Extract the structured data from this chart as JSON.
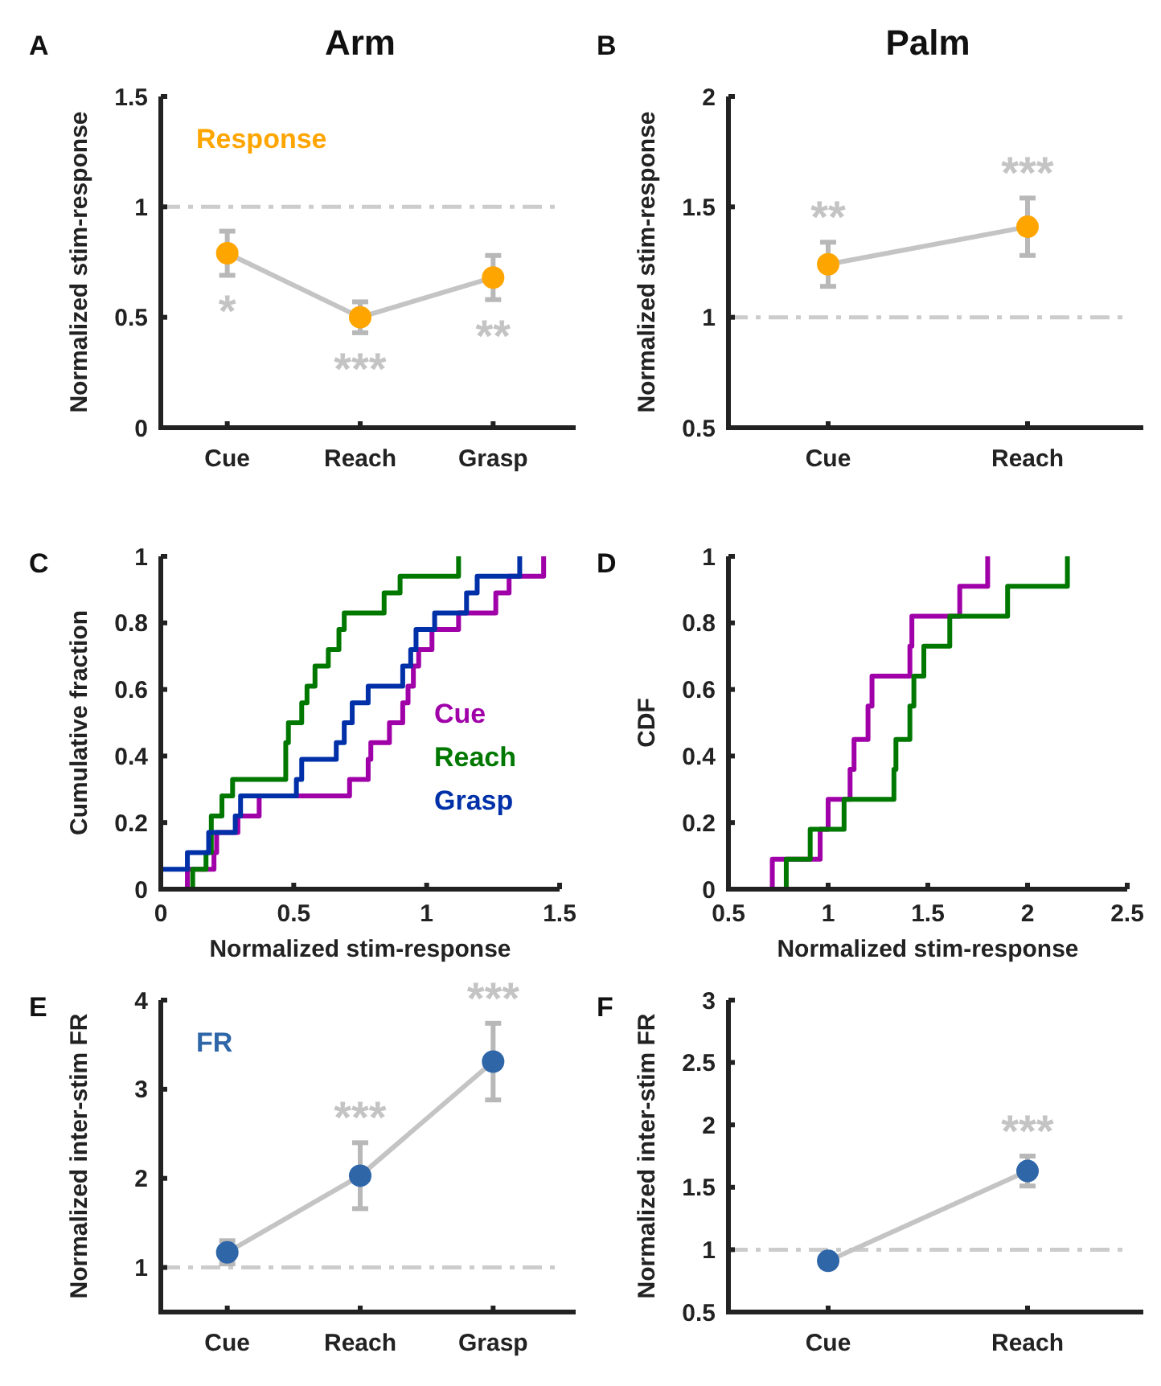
{
  "chart_data": [
    {
      "type": "line",
      "title": "Arm",
      "ylabel": "Normalized stim-response",
      "categories": [
        "Cue",
        "Reach",
        "Grasp"
      ],
      "series": [
        {
          "name": "Response",
          "color": "#ffa500",
          "values": [
            0.79,
            0.5,
            0.68
          ],
          "errors": [
            0.1,
            0.07,
            0.1
          ],
          "value_labels": [
            "*",
            "***",
            "**"
          ]
        }
      ],
      "ylim": [
        0,
        1.5
      ],
      "yticks": [
        0,
        0.5,
        1,
        1.5
      ],
      "ref_lines": [
        {
          "axis": "y",
          "value": 1,
          "color": "#cccccc",
          "line_style": "dashed"
        }
      ],
      "legend": "top left",
      "marker": "circle",
      "annotations": [
        "A"
      ]
    },
    {
      "type": "line",
      "title": "Palm",
      "ylabel": "Normalized stim-response",
      "categories": [
        "Cue",
        "Reach"
      ],
      "series": [
        {
          "color": "#ffa500",
          "values": [
            1.24,
            1.41
          ],
          "errors": [
            0.1,
            0.13
          ],
          "value_labels": [
            "**",
            "***"
          ]
        }
      ],
      "ylim": [
        0.5,
        2
      ],
      "yticks": [
        0.5,
        1,
        1.5,
        2
      ],
      "ref_lines": [
        {
          "axis": "y",
          "value": 1,
          "color": "#cccccc",
          "line_style": "dashed"
        }
      ],
      "marker": "circle",
      "annotations": [
        "B"
      ]
    },
    {
      "type": "step",
      "xlabel": "Normalized stim-response",
      "ylabel": "Cumulative fraction",
      "xlim": [
        0,
        1.5
      ],
      "xticks": [
        0,
        0.5,
        1,
        1.5
      ],
      "ylim": [
        0,
        1
      ],
      "yticks": [
        0,
        0.2,
        0.4,
        0.6,
        0.8,
        1
      ],
      "legend": "right",
      "series": [
        {
          "name": "Cue",
          "color": "#a000a8",
          "x": [
            0.1,
            0.1,
            0.2,
            0.21,
            0.29,
            0.37,
            0.71,
            0.78,
            0.79,
            0.86,
            0.91,
            0.93,
            0.95,
            0.97,
            1.02,
            1.12,
            1.26,
            1.31,
            1.44
          ],
          "values": [
            0,
            0.06,
            0.11,
            0.17,
            0.22,
            0.28,
            0.33,
            0.39,
            0.44,
            0.5,
            0.56,
            0.61,
            0.67,
            0.72,
            0.78,
            0.83,
            0.89,
            0.94,
            1
          ]
        },
        {
          "name": "Reach",
          "color": "#007800",
          "x": [
            0.12,
            0.12,
            0.17,
            0.19,
            0.23,
            0.27,
            0.47,
            0.48,
            0.53,
            0.55,
            0.58,
            0.63,
            0.67,
            0.69,
            0.84,
            0.9,
            1.12
          ],
          "values": [
            0,
            0.06,
            0.11,
            0.22,
            0.28,
            0.33,
            0.44,
            0.5,
            0.56,
            0.61,
            0.67,
            0.72,
            0.78,
            0.83,
            0.89,
            0.94,
            1
          ]
        },
        {
          "name": "Grasp",
          "color": "#0030a8",
          "x": [
            0,
            0,
            0.1,
            0.18,
            0.28,
            0.3,
            0.51,
            0.53,
            0.66,
            0.69,
            0.72,
            0.78,
            0.91,
            0.94,
            0.96,
            1.03,
            1.15,
            1.19,
            1.35
          ],
          "values": [
            0,
            0.06,
            0.11,
            0.17,
            0.22,
            0.28,
            0.33,
            0.39,
            0.44,
            0.5,
            0.56,
            0.61,
            0.67,
            0.72,
            0.78,
            0.83,
            0.89,
            0.94,
            1
          ]
        }
      ],
      "annotations": [
        "C"
      ]
    },
    {
      "type": "step",
      "xlabel": "Normalized stim-response",
      "ylabel": "CDF",
      "xlim": [
        0.5,
        2.5
      ],
      "xticks": [
        0.5,
        1,
        1.5,
        2,
        2.5
      ],
      "ylim": [
        0,
        1
      ],
      "yticks": [
        0,
        0.2,
        0.4,
        0.6,
        0.8,
        1
      ],
      "series": [
        {
          "color": "#a000a8",
          "x": [
            0.72,
            0.72,
            0.96,
            1.0,
            1.11,
            1.13,
            1.2,
            1.22,
            1.41,
            1.42,
            1.66,
            1.8
          ],
          "values": [
            0,
            0.09,
            0.18,
            0.27,
            0.36,
            0.45,
            0.55,
            0.64,
            0.73,
            0.82,
            0.91,
            1
          ]
        },
        {
          "color": "#007800",
          "x": [
            0.79,
            0.79,
            0.91,
            1.08,
            1.33,
            1.34,
            1.41,
            1.43,
            1.48,
            1.61,
            1.9,
            2.2
          ],
          "values": [
            0,
            0.09,
            0.18,
            0.27,
            0.36,
            0.45,
            0.55,
            0.64,
            0.73,
            0.82,
            0.91,
            1
          ]
        }
      ],
      "annotations": [
        "D"
      ]
    },
    {
      "type": "line",
      "ylabel": "Normalized inter-stim FR",
      "categories": [
        "Cue",
        "Reach",
        "Grasp"
      ],
      "series": [
        {
          "name": "FR",
          "color": "#2e66a8",
          "values": [
            1.17,
            2.03,
            3.31
          ],
          "errors": [
            0.13,
            0.37,
            0.43
          ],
          "value_labels": [
            null,
            "***",
            "***"
          ]
        }
      ],
      "ylim": [
        0.5,
        4
      ],
      "yticks": [
        {
          "value": 0.5,
          "label": null
        },
        1,
        2,
        3,
        4
      ],
      "ref_lines": [
        {
          "axis": "y",
          "value": 1,
          "color": "#cccccc",
          "line_style": "dashed"
        }
      ],
      "legend": "top left",
      "marker": "circle",
      "annotations": [
        "E"
      ]
    },
    {
      "type": "line",
      "ylabel": "Normalized inter-stim FR",
      "categories": [
        "Cue",
        "Reach"
      ],
      "series": [
        {
          "color": "#2e66a8",
          "values": [
            0.91,
            1.63
          ],
          "errors": [
            null,
            0.12
          ],
          "value_labels": [
            null,
            "***"
          ]
        }
      ],
      "ylim": [
        0.5,
        3
      ],
      "yticks": [
        0.5,
        1,
        1.5,
        2,
        2.5,
        3
      ],
      "ref_lines": [
        {
          "axis": "y",
          "value": 1,
          "color": "#cccccc",
          "line_style": "dashed"
        }
      ],
      "marker": "circle",
      "annotations": [
        "F"
      ]
    }
  ]
}
